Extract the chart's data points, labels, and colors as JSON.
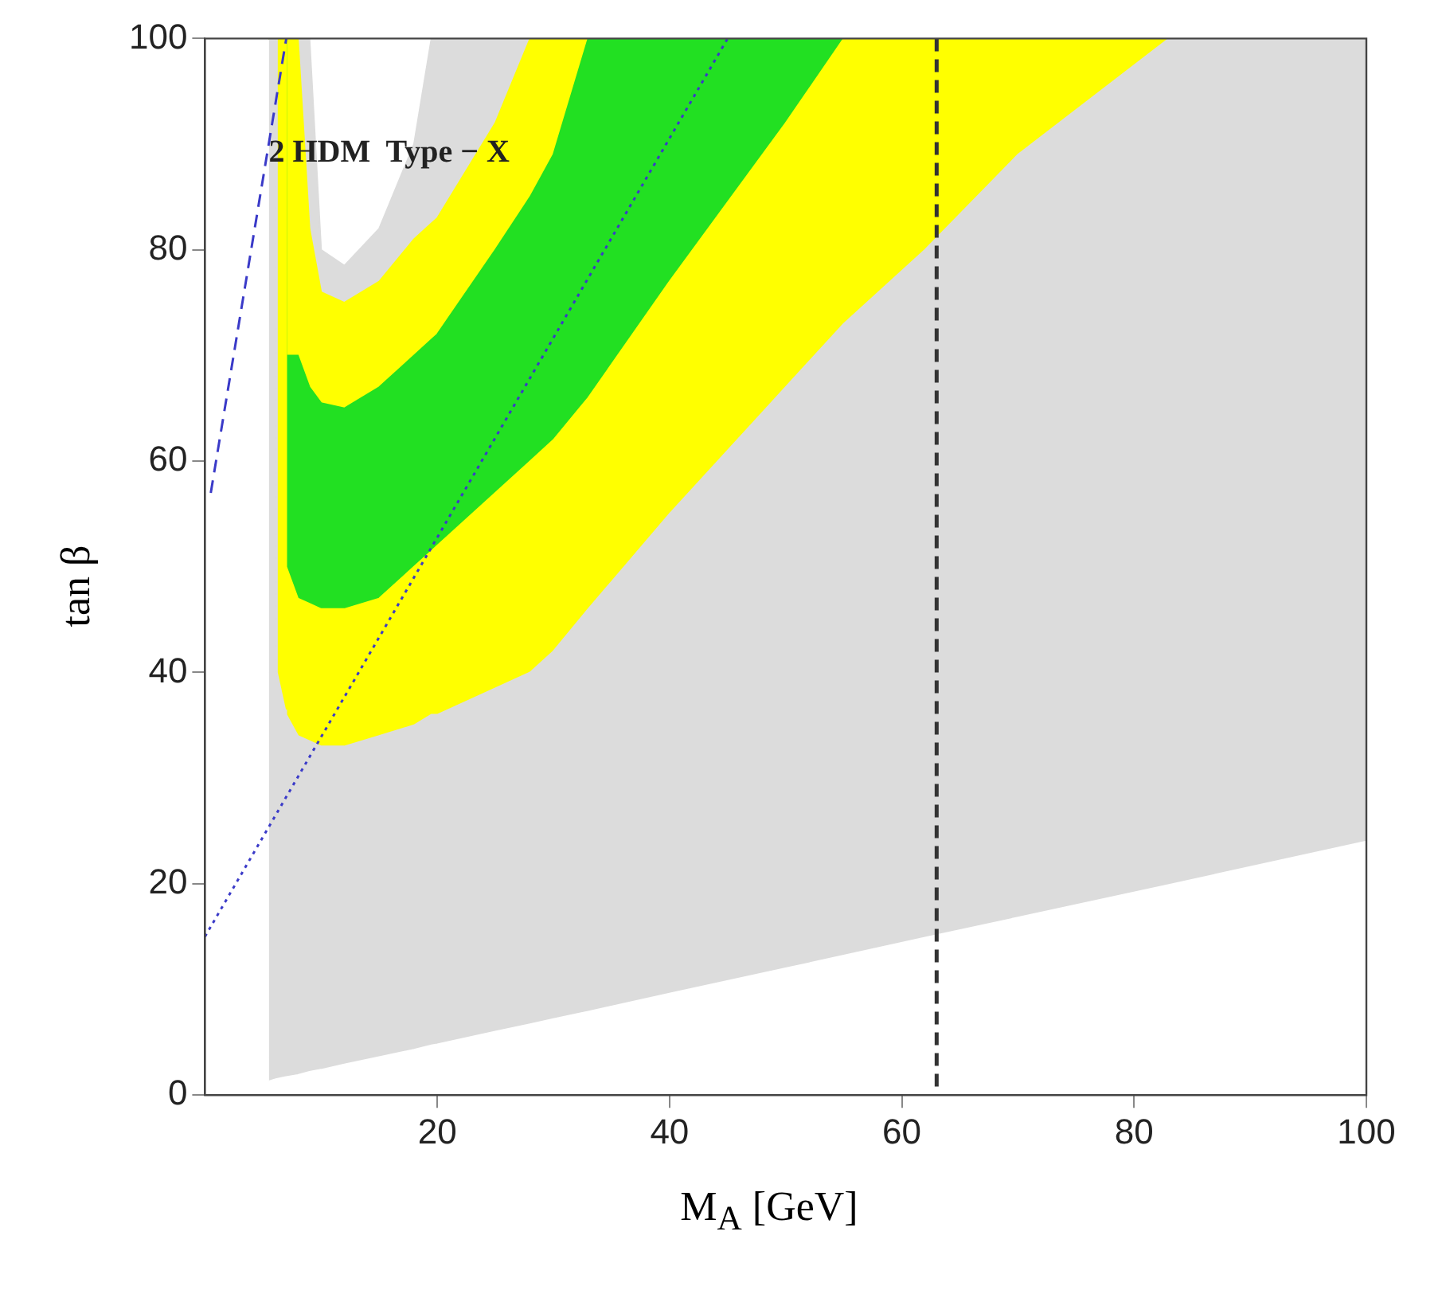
{
  "chart_data": {
    "type": "area",
    "stacked": true,
    "xlabel": "M$_{A}$ [GeV]",
    "ylabel": "tan β",
    "annotations": [
      "2 HDM  Type − X"
    ],
    "xlim": [
      0,
      100
    ],
    "ylim": [
      0,
      100
    ],
    "xticks": [
      20,
      40,
      60,
      80,
      100
    ],
    "yticks": [
      0,
      20,
      40,
      60,
      80,
      100
    ],
    "grid": false,
    "legend": false,
    "x": [
      5.5,
      6.1,
      6.2,
      6.9,
      7,
      8,
      9,
      10,
      12,
      15,
      18,
      19.5,
      20,
      25,
      28,
      30,
      33,
      40,
      50,
      55,
      62,
      70,
      83,
      100
    ],
    "series": [
      {
        "color": "#ffffff",
        "values": [
          1.3,
          1.5,
          1.5,
          1.7,
          1.7,
          1.9,
          2.2,
          2.4,
          2.9,
          3.6,
          4.3,
          4.7,
          4.8,
          6,
          6.7,
          7.2,
          7.9,
          9.6,
          12,
          13.2,
          14.9,
          16.8,
          19.9,
          24
        ]
      },
      {
        "color": "#dcdcdc",
        "values": [
          98.7,
          98.5,
          38.5,
          34.8,
          34.3,
          32.1,
          31.3,
          30.6,
          30.1,
          30.4,
          30.7,
          31.3,
          31.2,
          32.5,
          33.3,
          34.8,
          38.1,
          45.4,
          55,
          59.8,
          65.1,
          72.2,
          80.1,
          76
        ]
      },
      {
        "color": "#ffff00",
        "values": [
          0,
          0,
          60,
          63.5,
          14,
          13,
          13,
          13,
          13,
          13,
          15,
          15.5,
          16,
          18.5,
          20,
          20,
          20,
          22,
          25,
          27,
          20,
          11,
          0,
          0
        ]
      },
      {
        "color": "#22e022",
        "values": [
          0,
          0,
          0,
          0,
          20,
          23,
          20.5,
          19.5,
          19,
          20,
          20,
          20,
          20,
          23,
          25,
          27,
          34,
          23,
          8,
          0,
          0,
          0,
          0,
          0
        ]
      },
      {
        "color": "#ffff00",
        "values": [
          0,
          0,
          0,
          0,
          30,
          30,
          15,
          10.5,
          10,
          10,
          11,
          11,
          11,
          12,
          15,
          11,
          0,
          0,
          0,
          0,
          0,
          0,
          0,
          0
        ]
      },
      {
        "color": "#dcdcdc",
        "values": [
          0,
          0,
          0,
          0,
          0,
          0,
          18,
          4,
          3.5,
          5,
          9,
          17.5,
          17,
          8,
          0,
          0,
          0,
          0,
          0,
          0,
          0,
          0,
          0,
          0
        ]
      },
      {
        "type": "line",
        "color": "#3a3ac8",
        "line_style": "dashed",
        "x": [
          0.5,
          7
        ],
        "values": [
          57,
          100
        ]
      },
      {
        "type": "line",
        "color": "#3a3ac8",
        "line_style": "dotted",
        "x": [
          0,
          45
        ],
        "values": [
          15,
          100
        ]
      }
    ],
    "ref_lines": [
      {
        "axis": "x",
        "value": 63,
        "color": "#333333",
        "line_style": "dashed"
      }
    ]
  }
}
